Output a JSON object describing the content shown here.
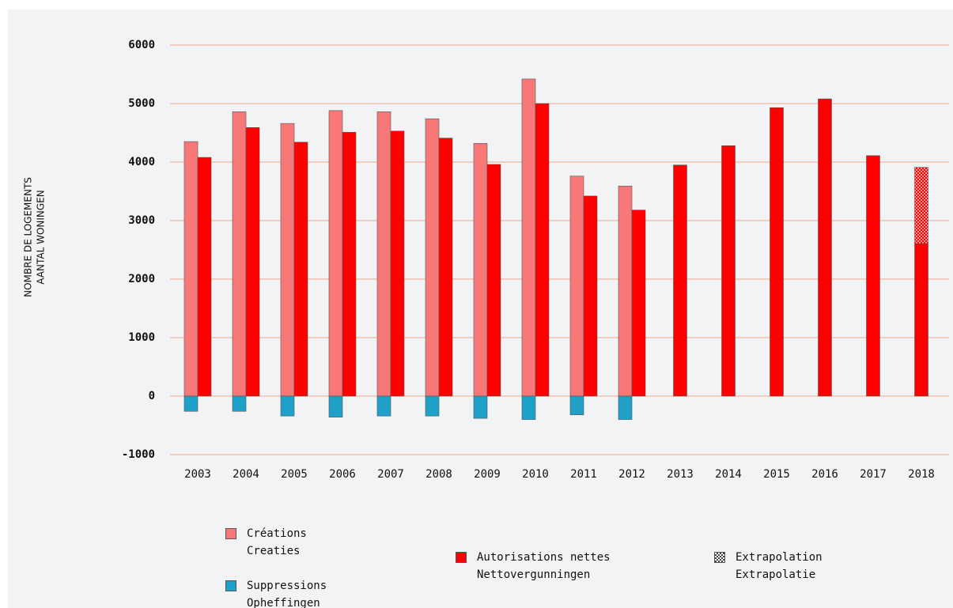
{
  "chart_data": {
    "type": "bar",
    "y_label": [
      "NOMBRE DE LOGEMENTS",
      "AANTAL WONINGEN"
    ],
    "categories": [
      "2003",
      "2004",
      "2005",
      "2006",
      "2007",
      "2008",
      "2009",
      "2010",
      "2011",
      "2012",
      "2013",
      "2014",
      "2015",
      "2016",
      "2017",
      "2018"
    ],
    "series": [
      {
        "name": "Créations\nCreaties",
        "color": "#f87878",
        "values": [
          4350,
          4860,
          4660,
          4880,
          4860,
          4740,
          4320,
          5420,
          3760,
          3590,
          null,
          null,
          null,
          null,
          null,
          null
        ]
      },
      {
        "name": "Suppressions\nOpheffingen",
        "color": "#1ea0c8",
        "values": [
          -260,
          -260,
          -340,
          -360,
          -340,
          -340,
          -380,
          -400,
          -320,
          -400,
          null,
          null,
          null,
          null,
          null,
          null
        ]
      },
      {
        "name": "Autorisations nettes\nNettovergunningen",
        "color": "#ff0000",
        "values": [
          4080,
          4590,
          4340,
          4510,
          4530,
          4410,
          3960,
          5000,
          3420,
          3180,
          3950,
          4280,
          4930,
          5080,
          4110,
          2610
        ]
      },
      {
        "name": "Extrapolation\nExtrapolatie",
        "color": "#ff0000",
        "pattern": "dotted",
        "values": [
          null,
          null,
          null,
          null,
          null,
          null,
          null,
          null,
          null,
          null,
          null,
          null,
          null,
          null,
          null,
          1300
        ]
      }
    ],
    "ylim": [
      -1000,
      6000
    ],
    "yticks": [
      -1000,
      0,
      1000,
      2000,
      3000,
      4000,
      5000,
      6000
    ],
    "grid": true
  }
}
